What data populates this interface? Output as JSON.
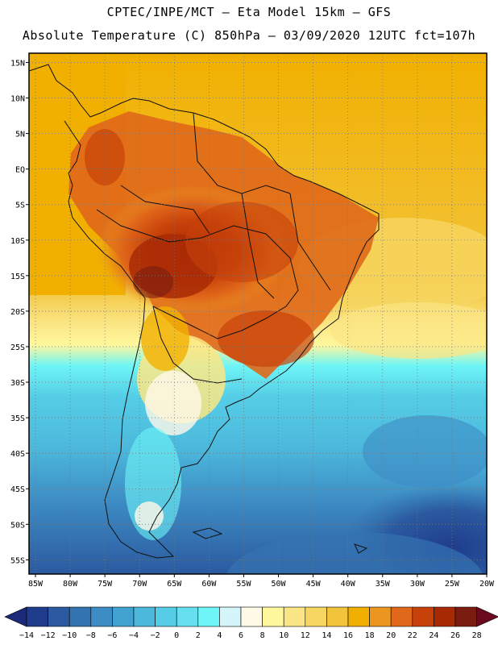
{
  "header": {
    "line1": "CPTEC/INPE/MCT –  Eta Model 15km – GFS",
    "line2": "Absolute Temperature (C) 850hPa – 03/09/2020 12UTC fct=107h"
  },
  "map": {
    "lat_labels": [
      "15N",
      "10N",
      "5N",
      "EQ",
      "5S",
      "10S",
      "15S",
      "20S",
      "25S",
      "30S",
      "35S",
      "40S",
      "45S",
      "50S",
      "55S"
    ],
    "lon_labels": [
      "85W",
      "80W",
      "75W",
      "70W",
      "65W",
      "60W",
      "55W",
      "50W",
      "45W",
      "40W",
      "35W",
      "30W",
      "25W",
      "20W"
    ],
    "lat_range": [
      15,
      -57
    ],
    "lon_range": [
      -85,
      -20
    ]
  },
  "colorbar": {
    "labels": [
      "-14",
      "-12",
      "-10",
      "-8",
      "-6",
      "-4",
      "-2",
      "0",
      "2",
      "4",
      "6",
      "8",
      "10",
      "12",
      "14",
      "16",
      "18",
      "20",
      "22",
      "24",
      "26",
      "28"
    ],
    "colors": [
      "#1f3c8c",
      "#2b5aa0",
      "#3473b2",
      "#3d8cc4",
      "#43a3d0",
      "#4cb8dc",
      "#55cde6",
      "#66e0ee",
      "#6ef5f7",
      "#d4f6fb",
      "#fff9e8",
      "#fff79c",
      "#fbe685",
      "#f6d660",
      "#f2c43c",
      "#f1b000",
      "#eb9620",
      "#e0681a",
      "#c7410a",
      "#a82a05",
      "#7a1c10"
    ],
    "left_arrow": "#1b2a7a",
    "right_arrow": "#6b0a1e"
  }
}
